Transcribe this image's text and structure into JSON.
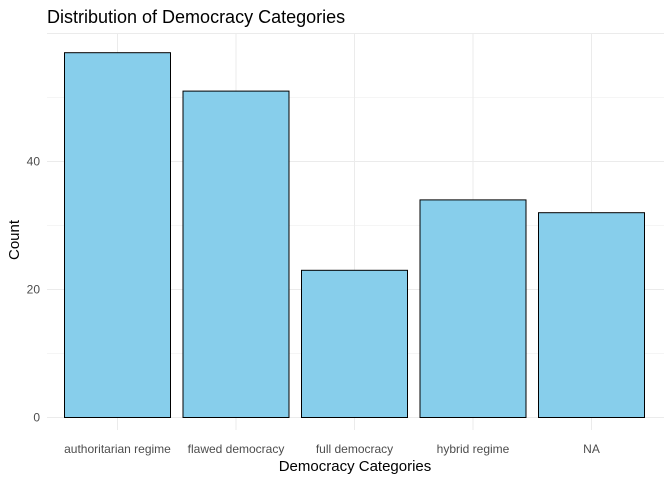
{
  "chart_data": {
    "type": "bar",
    "title": "Distribution of Democracy Categories",
    "xlabel": "Democracy Categories",
    "ylabel": "Count",
    "categories": [
      "authoritarian regime",
      "flawed democracy",
      "full democracy",
      "hybrid regime",
      "NA"
    ],
    "values": [
      57,
      51,
      23,
      34,
      32
    ],
    "ylim": [
      0,
      60
    ],
    "yticks": [
      0,
      20,
      40
    ],
    "grid": true,
    "legend": "none",
    "bar_fill": "#87CEEB",
    "bar_outline": "#000000"
  }
}
